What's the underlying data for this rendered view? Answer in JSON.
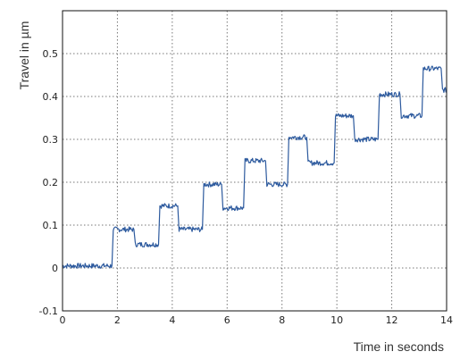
{
  "chart_data": {
    "type": "line",
    "title": "",
    "xlabel": "Time in seconds",
    "ylabel": "Travel in µm",
    "xlim": [
      0,
      14
    ],
    "ylim": [
      -0.1,
      0.6
    ],
    "x_ticks": [
      0,
      2,
      4,
      6,
      8,
      10,
      12,
      14
    ],
    "y_ticks": [
      -0.1,
      0,
      0.1,
      0.2,
      0.3,
      0.4,
      0.5
    ],
    "x_tick_labels": [
      "0",
      "2",
      "4",
      "6",
      "8",
      "10",
      "12",
      "14"
    ],
    "y_tick_labels": [
      "-0.1",
      "0",
      "0.1",
      "0.2",
      "0.3",
      "0.4",
      "0.5"
    ],
    "grid": true,
    "legend": "none",
    "series": [
      {
        "color": "#2d5a9e",
        "x": [
          0,
          1.8,
          1.85,
          2.6,
          2.65,
          3.5,
          3.55,
          4.2,
          4.25,
          5.1,
          5.15,
          5.8,
          5.85,
          6.6,
          6.65,
          7.4,
          7.45,
          8.2,
          8.25,
          8.9,
          8.95,
          9.9,
          9.95,
          10.6,
          10.65,
          11.5,
          11.55,
          12.3,
          12.35,
          13.1,
          13.15,
          13.8,
          13.85,
          14
        ],
        "y": [
          0.005,
          0.005,
          0.09,
          0.09,
          0.055,
          0.055,
          0.145,
          0.145,
          0.09,
          0.09,
          0.195,
          0.195,
          0.14,
          0.14,
          0.25,
          0.25,
          0.195,
          0.195,
          0.305,
          0.305,
          0.245,
          0.245,
          0.355,
          0.355,
          0.3,
          0.3,
          0.405,
          0.405,
          0.355,
          0.355,
          0.465,
          0.465,
          0.415,
          0.415
        ]
      }
    ]
  }
}
